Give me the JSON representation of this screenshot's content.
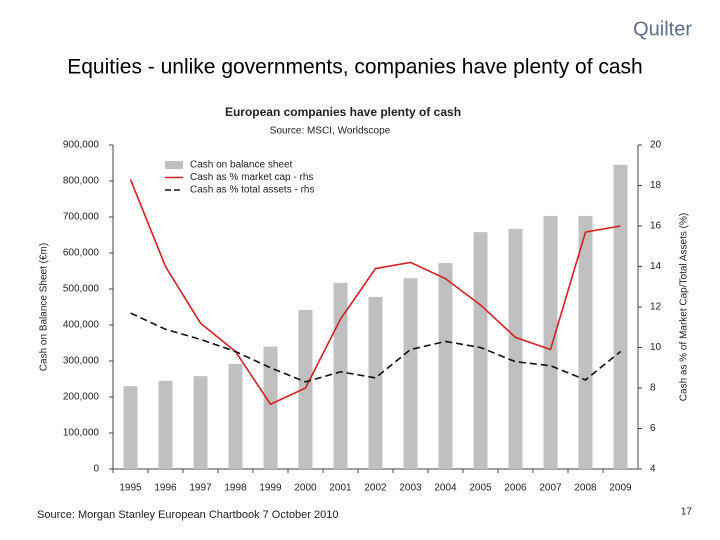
{
  "logo": "Quilter",
  "slide_title": "Equities - unlike governments, companies have plenty of cash",
  "footer_source": "Source: Morgan Stanley European Chartbook 7 October 2010",
  "page_number": 17,
  "chart_data": {
    "type": "bar",
    "title": "European companies have plenty of cash",
    "subtitle": "Source: MSCI, Worldscope",
    "y_label": "Cash on Balance Sheet (€m)",
    "y2_label": "Cash as % of Market Cap/Total Assets (%)",
    "categories": [
      "1995",
      "1996",
      "1997",
      "1998",
      "1999",
      "2000",
      "2001",
      "2002",
      "2003",
      "2004",
      "2005",
      "2006",
      "2007",
      "2008",
      "2009"
    ],
    "series": [
      {
        "name": "Cash on balance sheet",
        "type": "bar",
        "color": "#c0c0c0",
        "values": [
          230000,
          245000,
          258000,
          292000,
          340000,
          442000,
          517000,
          478000,
          530000,
          572000,
          658000,
          667000,
          703000,
          703000,
          845000
        ]
      },
      {
        "name": "Cash as % market cap - rhs",
        "type": "line",
        "axis": "y2",
        "color": "#d62020",
        "style": "solid",
        "values": [
          18.3,
          14.0,
          11.2,
          9.8,
          7.2,
          8.0,
          11.4,
          13.9,
          14.2,
          13.4,
          12.1,
          10.5,
          9.9,
          15.7,
          16.0
        ]
      },
      {
        "name": "Cash as % total assets - rhs",
        "type": "line",
        "axis": "y2",
        "color": "#111111",
        "style": "dashed",
        "values": [
          11.7,
          10.9,
          10.4,
          9.8,
          9.0,
          8.3,
          8.8,
          8.5,
          9.9,
          10.3,
          10.0,
          9.3,
          9.1,
          8.4,
          9.8
        ]
      }
    ],
    "ylim": [
      0,
      900000
    ],
    "yticks": [
      0,
      {
        "value": 100000,
        "label": "100,000"
      },
      {
        "value": 200000,
        "label": "200,000"
      },
      {
        "value": 300000,
        "label": "300,000"
      },
      {
        "value": 400000,
        "label": "400,000"
      },
      {
        "value": 500000,
        "label": "500,000"
      },
      {
        "value": 600000,
        "label": "600,000"
      },
      {
        "value": 700000,
        "label": "700,000"
      },
      {
        "value": 800000,
        "label": "800,000"
      },
      {
        "value": 900000,
        "label": "900,000"
      }
    ],
    "y2lim": [
      4,
      20
    ],
    "y2ticks": [
      4,
      6,
      8,
      10,
      12,
      14,
      16,
      18,
      20
    ],
    "grid": false
  }
}
